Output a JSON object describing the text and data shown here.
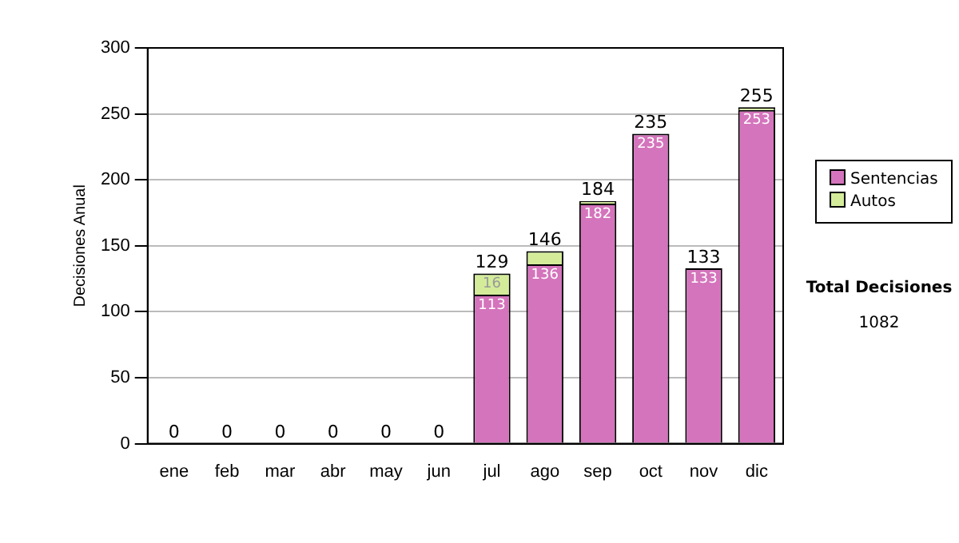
{
  "chart_data": {
    "type": "bar",
    "stacked": true,
    "ylabel": "Decisiones Anual",
    "categories": [
      "ene",
      "feb",
      "mar",
      "abr",
      "may",
      "jun",
      "jul",
      "ago",
      "sep",
      "oct",
      "nov",
      "dic"
    ],
    "series": [
      {
        "name": "Sentencias",
        "color": "#d474bc",
        "values": [
          0,
          0,
          0,
          0,
          0,
          0,
          113,
          136,
          182,
          235,
          133,
          253
        ],
        "value_labels": [
          null,
          null,
          null,
          null,
          null,
          null,
          "113",
          "136",
          "182",
          "235",
          "133",
          "253"
        ]
      },
      {
        "name": "Autos",
        "color": "#d4ec9a",
        "values": [
          0,
          0,
          0,
          0,
          0,
          0,
          16,
          10,
          2,
          0,
          0,
          2
        ],
        "value_labels": [
          null,
          null,
          null,
          null,
          null,
          null,
          "16",
          null,
          null,
          null,
          null,
          null
        ]
      }
    ],
    "totals": [
      "0",
      "0",
      "0",
      "0",
      "0",
      "0",
      "129",
      "146",
      "184",
      "235",
      "133",
      "255"
    ],
    "ylim": [
      0,
      300
    ],
    "yticks": [
      0,
      50,
      100,
      150,
      200,
      250,
      300
    ],
    "grid": "y",
    "legend": "right",
    "annotations": [
      "Total Decisiones",
      "1082"
    ]
  }
}
